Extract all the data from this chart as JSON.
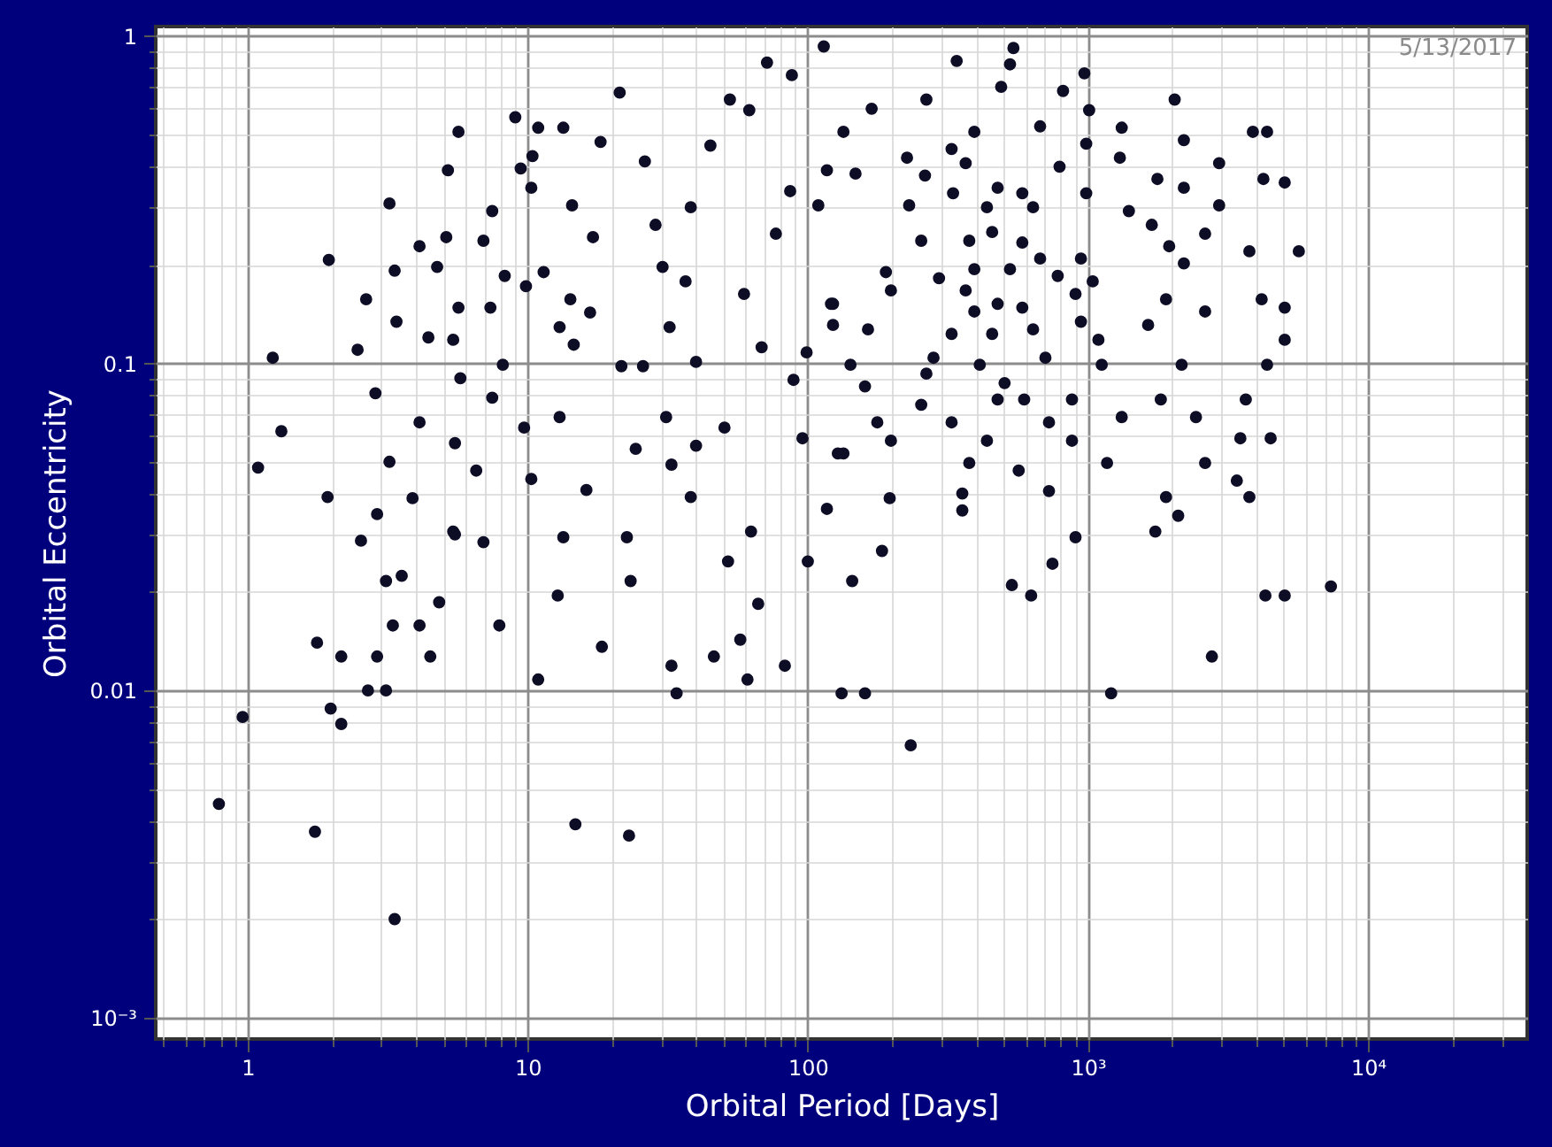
{
  "chart_data": {
    "type": "scatter",
    "xlabel": "Orbital Period [Days]",
    "ylabel": "Orbital Eccentricity",
    "annotations": [
      "5/13/2017"
    ],
    "log": "xy",
    "grid": true,
    "marker": "circle",
    "color": "#0d0d26",
    "xlim": [
      0.47,
      37000
    ],
    "ylim": [
      0.00086,
      1.07
    ],
    "xticks": [
      {
        "value": 0.5,
        "label": null
      },
      {
        "value": 0.6,
        "label": null
      },
      {
        "value": 0.7,
        "label": null
      },
      {
        "value": 0.8,
        "label": null
      },
      {
        "value": 0.9,
        "label": null
      },
      1,
      {
        "value": 2,
        "label": null
      },
      {
        "value": 3,
        "label": null
      },
      {
        "value": 4,
        "label": null
      },
      {
        "value": 5,
        "label": null
      },
      {
        "value": 6,
        "label": null
      },
      {
        "value": 7,
        "label": null
      },
      {
        "value": 8,
        "label": null
      },
      {
        "value": 9,
        "label": null
      },
      10,
      {
        "value": 20,
        "label": null
      },
      {
        "value": 30,
        "label": null
      },
      {
        "value": 40,
        "label": null
      },
      {
        "value": 50,
        "label": null
      },
      {
        "value": 60,
        "label": null
      },
      {
        "value": 70,
        "label": null
      },
      {
        "value": 80,
        "label": null
      },
      {
        "value": 90,
        "label": null
      },
      100,
      {
        "value": 200,
        "label": null
      },
      {
        "value": 300,
        "label": null
      },
      {
        "value": 400,
        "label": null
      },
      {
        "value": 500,
        "label": null
      },
      {
        "value": 600,
        "label": null
      },
      {
        "value": 700,
        "label": null
      },
      {
        "value": 800,
        "label": null
      },
      {
        "value": 900,
        "label": null
      },
      {
        "value": 1000,
        "label": "10³"
      },
      {
        "value": 2000,
        "label": null
      },
      {
        "value": 3000,
        "label": null
      },
      {
        "value": 4000,
        "label": null
      },
      {
        "value": 5000,
        "label": null
      },
      {
        "value": 6000,
        "label": null
      },
      {
        "value": 7000,
        "label": null
      },
      {
        "value": 8000,
        "label": null
      },
      {
        "value": 9000,
        "label": null
      },
      {
        "value": 10000,
        "label": "10⁴"
      },
      {
        "value": 20000,
        "label": null
      },
      {
        "value": 30000,
        "label": null
      }
    ],
    "yticks": [
      {
        "value": 0.001,
        "label": "10⁻³"
      },
      {
        "value": 0.002,
        "label": null
      },
      {
        "value": 0.003,
        "label": null
      },
      {
        "value": 0.004,
        "label": null
      },
      {
        "value": 0.005,
        "label": null
      },
      {
        "value": 0.006,
        "label": null
      },
      {
        "value": 0.007,
        "label": null
      },
      {
        "value": 0.008,
        "label": null
      },
      {
        "value": 0.009,
        "label": null
      },
      0.01,
      {
        "value": 0.02,
        "label": null
      },
      {
        "value": 0.03,
        "label": null
      },
      {
        "value": 0.04,
        "label": null
      },
      {
        "value": 0.05,
        "label": null
      },
      {
        "value": 0.06,
        "label": null
      },
      {
        "value": 0.07,
        "label": null
      },
      {
        "value": 0.08,
        "label": null
      },
      {
        "value": 0.09,
        "label": null
      },
      0.1,
      {
        "value": 0.2,
        "label": null
      },
      {
        "value": 0.3,
        "label": null
      },
      {
        "value": 0.4,
        "label": null
      },
      {
        "value": 0.5,
        "label": null
      },
      {
        "value": 0.6,
        "label": null
      },
      {
        "value": 0.7,
        "label": null
      },
      {
        "value": 0.8,
        "label": null
      },
      {
        "value": 0.9,
        "label": null
      },
      1
    ],
    "x": [
      0.79,
      0.96,
      1.74,
      1.77,
      2.16,
      1.98,
      2.16,
      2.69,
      3.12,
      3.35,
      2.9,
      3.3,
      3.12,
      3.55,
      2.54,
      4.11,
      4.49,
      4.83,
      5.42,
      6.95,
      7.92,
      10.9,
      12.8,
      13.4,
      14.8,
      18.4,
      22.6,
      23,
      23.3,
      32.6,
      34,
      46.2,
      51.9,
      57.4,
      60.9,
      66.5,
      82.8,
      100,
      132,
      160,
      233,
      144,
      184,
      535,
      627,
      747,
      1210,
      1740,
      2770,
      4300,
      5040,
      7370,
      1.23,
      1.32,
      1.09,
      1.93,
      1.95,
      2.65,
      2.47,
      2.86,
      3.21,
      3.35,
      3.4,
      4.11,
      3.21,
      3.88,
      2.9,
      4.11,
      4.75,
      4.42,
      5.66,
      5.19,
      5.12,
      5.66,
      5.42,
      5.75,
      5.5,
      6.55,
      5.5,
      6.95,
      7.47,
      8.28,
      7.36,
      8.15,
      7.47,
      9.71,
      9.03,
      9.44,
      10.4,
      10.3,
      10.9,
      13.4,
      9.86,
      11.4,
      14.2,
      14.4,
      17.1,
      13,
      14.6,
      18.2,
      16.7,
      21.6,
      25.8,
      13,
      21.3,
      26.2,
      28.6,
      30.3,
      32.1,
      36.6,
      39.9,
      31.2,
      24.3,
      32.6,
      16.2,
      10.3,
      38.2,
      39.9,
      50.4,
      62.7,
      59.2,
      68.4,
      88.9,
      95.7,
      38.2,
      44.9,
      52.7,
      61.8,
      71.5,
      87.7,
      76.9,
      86.5,
      114,
      134,
      117,
      121,
      134,
      117,
      169,
      265,
      340,
      542,
      527,
      490,
      815,
      971,
      675,
      393,
      326,
      226,
      262,
      148,
      109,
      230,
      254,
      330,
      366,
      476,
      436,
      583,
      637,
      377,
      455,
      583,
      792,
      1010,
      1320,
      986,
      1300,
      1770,
      2200,
      2940,
      2040,
      2200,
      3880,
      4360,
      4230,
      5040,
      986,
      1400,
      1690,
      1950,
      2620,
      3770,
      5660,
      2940,
      2200,
      675,
      944,
      1040,
      780,
      903,
      527,
      393,
      294,
      190,
      198,
      366,
      393,
      476,
      583,
      326,
      455,
      637,
      944,
      1090,
      1640,
      1900,
      2620,
      4170,
      5040,
      5040,
      123,
      123,
      164,
      99,
      142,
      281,
      411,
      504,
      705,
      1120,
      2160,
      4360,
      160,
      265,
      476,
      592,
      877,
      1820,
      3660,
      254,
      177,
      326,
      726,
      1320,
      2430,
      198,
      436,
      877,
      3500,
      4490,
      128,
      377,
      566,
      1170,
      2620,
      196,
      356,
      356,
      726,
      1900,
      2100,
      903,
      3400,
      3770
    ],
    "values": [
      0.0045,
      0.0083,
      0.0037,
      0.014,
      0.0127,
      0.0088,
      0.0079,
      0.01,
      0.01,
      0.002,
      0.0127,
      0.0158,
      0.0216,
      0.0224,
      0.0287,
      0.0158,
      0.0127,
      0.0186,
      0.0306,
      0.0284,
      0.0158,
      0.0108,
      0.0195,
      0.0294,
      0.0039,
      0.0136,
      0.0294,
      0.0036,
      0.0216,
      0.0119,
      0.0098,
      0.0127,
      0.0248,
      0.0143,
      0.0108,
      0.0184,
      0.0119,
      0.0248,
      0.0098,
      0.0098,
      0.0068,
      0.0216,
      0.0267,
      0.021,
      0.0195,
      0.0244,
      0.0098,
      0.0306,
      0.0127,
      0.0195,
      0.0195,
      0.0208,
      0.104,
      0.062,
      0.048,
      0.039,
      0.207,
      0.157,
      0.11,
      0.081,
      0.308,
      0.192,
      0.134,
      0.066,
      0.05,
      0.0387,
      0.0346,
      0.228,
      0.197,
      0.12,
      0.51,
      0.389,
      0.243,
      0.148,
      0.118,
      0.09,
      0.057,
      0.047,
      0.03,
      0.237,
      0.292,
      0.185,
      0.148,
      0.099,
      0.0785,
      0.0636,
      0.565,
      0.394,
      0.43,
      0.344,
      0.525,
      0.525,
      0.172,
      0.19,
      0.157,
      0.304,
      0.243,
      0.129,
      0.114,
      0.475,
      0.143,
      0.098,
      0.098,
      0.0685,
      0.672,
      0.414,
      0.265,
      0.197,
      0.129,
      0.178,
      0.101,
      0.0685,
      0.0548,
      0.049,
      0.041,
      0.0443,
      0.039,
      0.056,
      0.0636,
      0.0306,
      0.163,
      0.112,
      0.089,
      0.059,
      0.3,
      0.463,
      0.64,
      0.594,
      0.83,
      0.76,
      0.249,
      0.336,
      0.93,
      0.51,
      0.389,
      0.152,
      0.053,
      0.0359,
      0.6,
      0.64,
      0.84,
      0.92,
      0.82,
      0.7,
      0.68,
      0.77,
      0.53,
      0.51,
      0.452,
      0.425,
      0.375,
      0.38,
      0.304,
      0.304,
      0.237,
      0.331,
      0.409,
      0.344,
      0.3,
      0.331,
      0.3,
      0.237,
      0.252,
      0.234,
      0.399,
      0.594,
      0.525,
      0.469,
      0.425,
      0.366,
      0.344,
      0.409,
      0.64,
      0.481,
      0.51,
      0.51,
      0.366,
      0.357,
      0.331,
      0.292,
      0.265,
      0.228,
      0.249,
      0.22,
      0.22,
      0.304,
      0.202,
      0.209,
      0.209,
      0.178,
      0.185,
      0.163,
      0.194,
      0.194,
      0.182,
      0.19,
      0.167,
      0.167,
      0.144,
      0.152,
      0.148,
      0.123,
      0.123,
      0.127,
      0.134,
      0.118,
      0.131,
      0.157,
      0.144,
      0.157,
      0.148,
      0.118,
      0.152,
      0.131,
      0.127,
      0.108,
      0.099,
      0.104,
      0.099,
      0.087,
      0.104,
      0.099,
      0.099,
      0.099,
      0.085,
      0.093,
      0.0775,
      0.0775,
      0.0775,
      0.0775,
      0.0775,
      0.0747,
      0.066,
      0.066,
      0.066,
      0.0685,
      0.0685,
      0.058,
      0.058,
      0.058,
      0.059,
      0.059,
      0.053,
      0.0496,
      0.047,
      0.0496,
      0.0496,
      0.0387,
      0.04,
      0.0355,
      0.0407,
      0.039,
      0.0342,
      0.0294,
      0.0438,
      0.039
    ]
  }
}
